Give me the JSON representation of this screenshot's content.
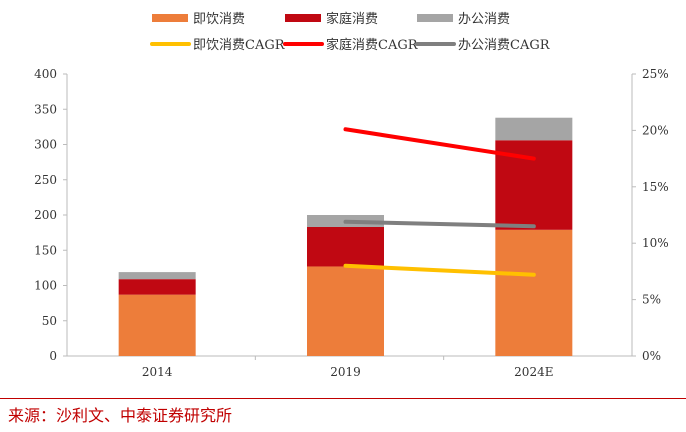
{
  "chart_data": {
    "type": "bar",
    "stacked": true,
    "categories": [
      "2014",
      "2019",
      "2024E"
    ],
    "series": [
      {
        "name": "即饮消费",
        "type": "bar",
        "axis": "left",
        "color": "#ED7D3A",
        "values": [
          87,
          127,
          179
        ]
      },
      {
        "name": "家庭消费",
        "type": "bar",
        "axis": "left",
        "color": "#C00812",
        "values": [
          22,
          56,
          127
        ]
      },
      {
        "name": "办公消费",
        "type": "bar",
        "axis": "left",
        "color": "#A5A5A5",
        "values": [
          10,
          17,
          32
        ]
      }
    ],
    "line_series": [
      {
        "name": "即饮消费CAGR",
        "type": "line",
        "axis": "right",
        "color": "#FFC000",
        "x": [
          "2019",
          "2024E"
        ],
        "values": [
          8.0,
          7.2
        ]
      },
      {
        "name": "家庭消费CAGR",
        "type": "line",
        "axis": "right",
        "color": "#FF0000",
        "x": [
          "2019",
          "2024E"
        ],
        "values": [
          20.1,
          17.5
        ]
      },
      {
        "name": "办公消费CAGR",
        "type": "line",
        "axis": "right",
        "color": "#7F7F7F",
        "x": [
          "2019",
          "2024E"
        ],
        "values": [
          11.9,
          11.5
        ]
      }
    ],
    "ylim": [
      0,
      400
    ],
    "yticks": [
      "0",
      "50",
      "100",
      "150",
      "200",
      "250",
      "300",
      "350",
      "400"
    ],
    "y2lim": [
      0,
      25
    ],
    "y2ticks": [
      "0%",
      "5%",
      "10%",
      "15%",
      "20%",
      "25%"
    ],
    "legend": "top",
    "grid": false
  },
  "source": "来源：沙利文、中泰证券研究所"
}
